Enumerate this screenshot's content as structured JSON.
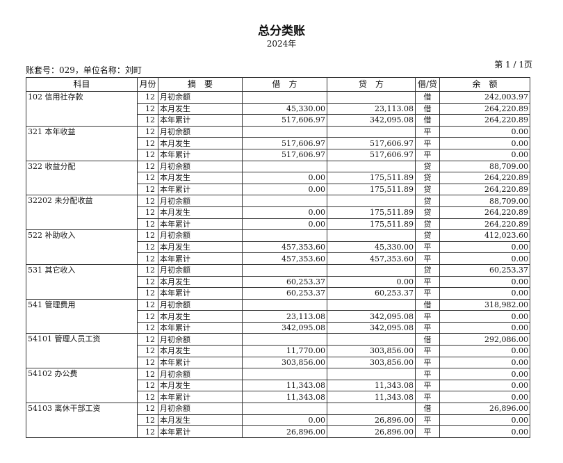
{
  "header": {
    "title": "总分类账",
    "year": "2024年",
    "meta": "账套号：029，单位名称：刘町",
    "page": "第 1 / 1页"
  },
  "columns": [
    "科目",
    "月份",
    "摘　要",
    "借　方",
    "贷　方",
    "借/贷",
    "余　额"
  ],
  "groups": [
    {
      "account": "102 信用社存款",
      "rows": [
        [
          "12",
          "月初余额",
          "",
          "",
          "借",
          "242,003.97"
        ],
        [
          "12",
          "本月发生",
          "45,330.00",
          "23,113.08",
          "借",
          "264,220.89"
        ],
        [
          "12",
          "本年累计",
          "517,606.97",
          "342,095.08",
          "借",
          "264,220.89"
        ]
      ]
    },
    {
      "account": "321 本年收益",
      "rows": [
        [
          "12",
          "月初余额",
          "",
          "",
          "平",
          "0.00"
        ],
        [
          "12",
          "本月发生",
          "517,606.97",
          "517,606.97",
          "平",
          "0.00"
        ],
        [
          "12",
          "本年累计",
          "517,606.97",
          "517,606.97",
          "平",
          "0.00"
        ]
      ]
    },
    {
      "account": "322 收益分配",
      "rows": [
        [
          "12",
          "月初余额",
          "",
          "",
          "贷",
          "88,709.00"
        ],
        [
          "12",
          "本月发生",
          "0.00",
          "175,511.89",
          "贷",
          "264,220.89"
        ],
        [
          "12",
          "本年累计",
          "0.00",
          "175,511.89",
          "贷",
          "264,220.89"
        ]
      ]
    },
    {
      "account": "32202 未分配收益",
      "rows": [
        [
          "12",
          "月初余额",
          "",
          "",
          "贷",
          "88,709.00"
        ],
        [
          "12",
          "本月发生",
          "0.00",
          "175,511.89",
          "贷",
          "264,220.89"
        ],
        [
          "12",
          "本年累计",
          "0.00",
          "175,511.89",
          "贷",
          "264,220.89"
        ]
      ]
    },
    {
      "account": "522 补助收入",
      "rows": [
        [
          "12",
          "月初余额",
          "",
          "",
          "贷",
          "412,023.60"
        ],
        [
          "12",
          "本月发生",
          "457,353.60",
          "45,330.00",
          "平",
          "0.00"
        ],
        [
          "12",
          "本年累计",
          "457,353.60",
          "457,353.60",
          "平",
          "0.00"
        ]
      ]
    },
    {
      "account": "531 其它收入",
      "rows": [
        [
          "12",
          "月初余额",
          "",
          "",
          "贷",
          "60,253.37"
        ],
        [
          "12",
          "本月发生",
          "60,253.37",
          "0.00",
          "平",
          "0.00"
        ],
        [
          "12",
          "本年累计",
          "60,253.37",
          "60,253.37",
          "平",
          "0.00"
        ]
      ]
    },
    {
      "account": "541 管理费用",
      "rows": [
        [
          "12",
          "月初余额",
          "",
          "",
          "借",
          "318,982.00"
        ],
        [
          "12",
          "本月发生",
          "23,113.08",
          "342,095.08",
          "平",
          "0.00"
        ],
        [
          "12",
          "本年累计",
          "342,095.08",
          "342,095.08",
          "平",
          "0.00"
        ]
      ]
    },
    {
      "account": "54101 管理人员工资",
      "rows": [
        [
          "12",
          "月初余额",
          "",
          "",
          "借",
          "292,086.00"
        ],
        [
          "12",
          "本月发生",
          "11,770.00",
          "303,856.00",
          "平",
          "0.00"
        ],
        [
          "12",
          "本年累计",
          "303,856.00",
          "303,856.00",
          "平",
          "0.00"
        ]
      ]
    },
    {
      "account": "54102 办公费",
      "rows": [
        [
          "12",
          "月初余额",
          "",
          "",
          "平",
          "0.00"
        ],
        [
          "12",
          "本月发生",
          "11,343.08",
          "11,343.08",
          "平",
          "0.00"
        ],
        [
          "12",
          "本年累计",
          "11,343.08",
          "11,343.08",
          "平",
          "0.00"
        ]
      ]
    },
    {
      "account": "54103 离休干部工资",
      "rows": [
        [
          "12",
          "月初余额",
          "",
          "",
          "借",
          "26,896.00"
        ],
        [
          "12",
          "本月发生",
          "0.00",
          "26,896.00",
          "平",
          "0.00"
        ],
        [
          "12",
          "本年累计",
          "26,896.00",
          "26,896.00",
          "平",
          "0.00"
        ]
      ]
    }
  ]
}
